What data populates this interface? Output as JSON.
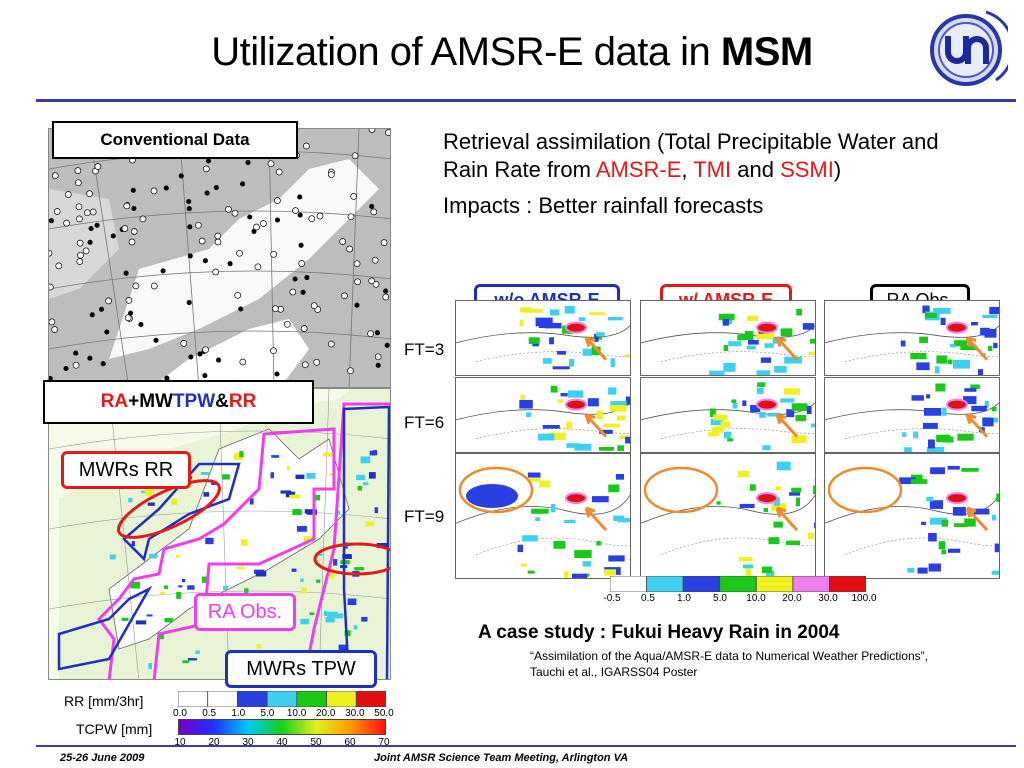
{
  "title": {
    "prefix": "Utilization of AMSR-E data in ",
    "bold": "MSM"
  },
  "left_panels": {
    "top_label": "Conventional Data",
    "bottom_label": {
      "ra": "RA",
      "plus": " + ",
      "mw": "MW ",
      "tpw": "TPW",
      "amp": " & ",
      "rr": "RR"
    },
    "callout_mwrs_rr": "MWRs RR",
    "callout_ra_obs": "RA Obs.",
    "callout_mwrs_tpw": "MWRs TPW"
  },
  "bullets": {
    "line1_a": "Retrieval assimilation (Total Precipitable Water and Rain Rate from ",
    "amsre": "AMSR-E",
    "comma": ", ",
    "tmi": "TMI",
    "and": " and ",
    "ssmi": "SSMI",
    "close": ")",
    "line2": "Impacts : Better rainfall forecasts"
  },
  "forecast": {
    "headers": [
      "w/o AMSR-E",
      "w/ AMSR-E",
      "RA Obs."
    ],
    "header_colors": [
      "#1f2fbf",
      "#e21a1a",
      "#000000"
    ],
    "rows": [
      "FT=3",
      "FT=6",
      "FT=9"
    ],
    "scale_ticks": [
      "-0.5",
      "0.5",
      "1.0",
      "5.0",
      "10.0",
      "20.0",
      "30.0",
      "100.0"
    ],
    "scale_colors": [
      "#ffffff",
      "#3fd0f0",
      "#2a3fe0",
      "#19c819",
      "#f0f020",
      "#f07ff0",
      "#e01010"
    ]
  },
  "case_study": {
    "title": "A case study : Fukui Heavy Rain in 2004",
    "ref_line1": "“Assimilation of the Aqua/AMSR-E data to Numerical Weather Predictions”,",
    "ref_line2": "Tauchi et al., IGARSS04 Poster"
  },
  "rr_scale": {
    "label": "RR [mm/3hr]",
    "ticks": [
      "0.0",
      "0.5",
      "1.0",
      "5.0",
      "10.0",
      "20.0",
      "30.0",
      "50.0"
    ],
    "colors": [
      "#ffffff",
      "#ffffff",
      "#2a3fe0",
      "#3fd0f0",
      "#19c819",
      "#f0f020",
      "#e01010"
    ]
  },
  "tcpw_scale": {
    "label": "TCPW [mm]",
    "ticks": [
      "10",
      "20",
      "30",
      "40",
      "50",
      "60",
      "70"
    ]
  },
  "footer": {
    "date": "25-26 June 2009",
    "meeting": "Joint AMSR Science Team Meeting, Arlington VA"
  }
}
